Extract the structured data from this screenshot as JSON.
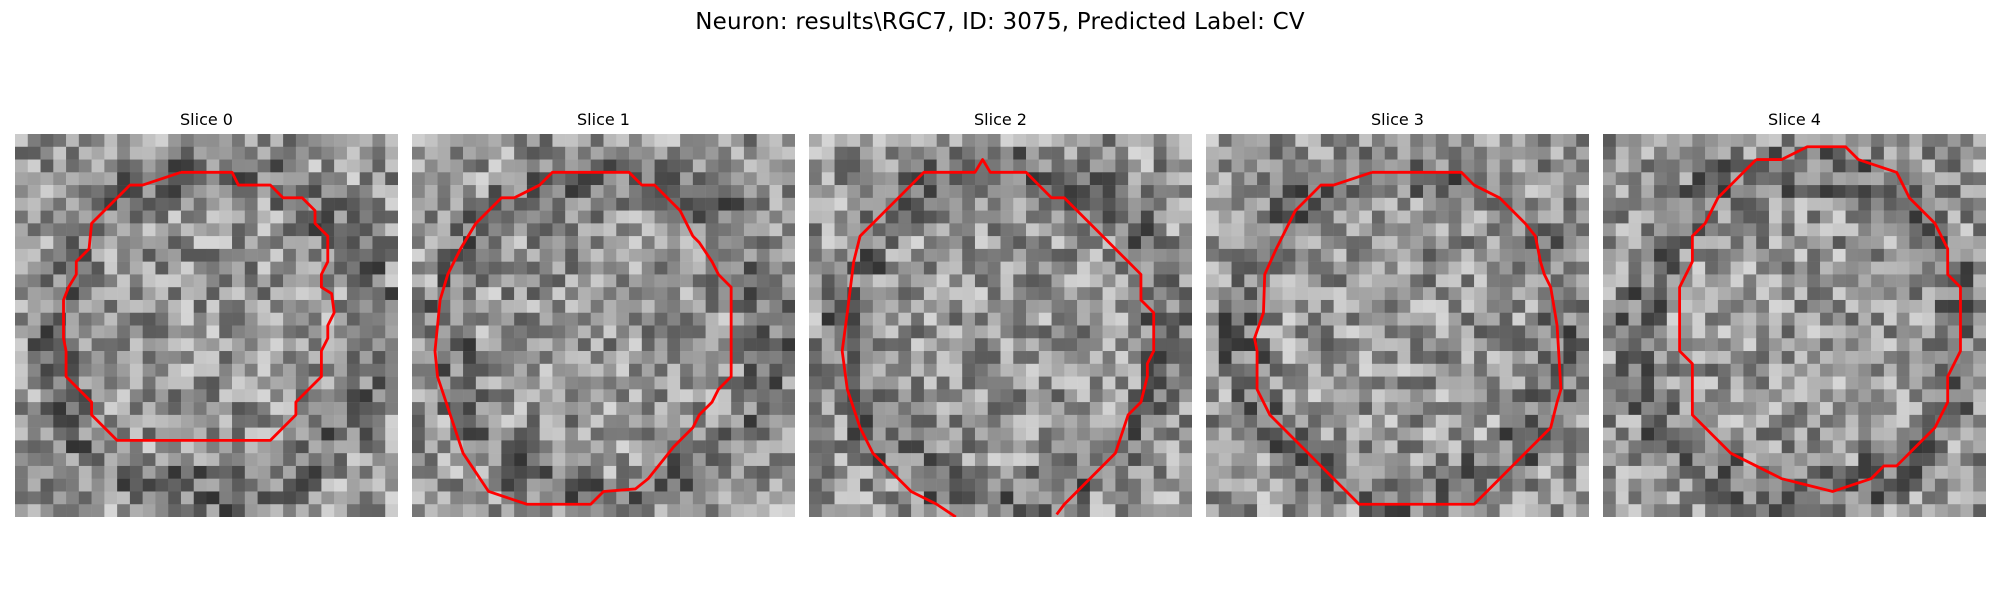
{
  "figure": {
    "title": "Neuron: results\\RGC7, ID: 3075, Predicted Label: CV"
  },
  "colors": {
    "contour": "#ff0000",
    "background": "#ffffff"
  },
  "panels": [
    {
      "title": "Slice 0",
      "seed": 11,
      "image": "grayscale-noise-patch",
      "contour": "red-cell-boundary"
    },
    {
      "title": "Slice 1",
      "seed": 23,
      "image": "grayscale-noise-patch",
      "contour": "red-cell-boundary"
    },
    {
      "title": "Slice 2",
      "seed": 37,
      "image": "grayscale-noise-patch",
      "contour": "red-cell-boundary"
    },
    {
      "title": "Slice 3",
      "seed": 41,
      "image": "grayscale-noise-patch",
      "contour": "red-cell-boundary"
    },
    {
      "title": "Slice 4",
      "seed": 59,
      "image": "grayscale-noise-patch",
      "contour": "red-cell-boundary"
    }
  ]
}
